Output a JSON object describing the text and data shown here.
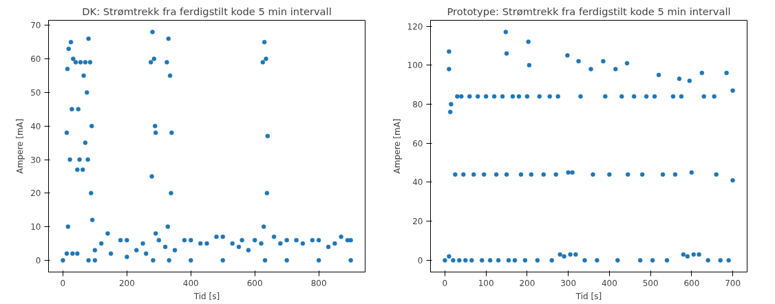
{
  "chart_data": [
    {
      "type": "scatter",
      "title": "DK: Strømtrekk fra ferdigstilt kode 5 min intervall",
      "xlabel": "Tid [s]",
      "ylabel": "Ampere [mA]",
      "xlim": [
        -45,
        945
      ],
      "ylim": [
        -3.5,
        71.5
      ],
      "xticks": [
        0,
        200,
        400,
        600,
        800
      ],
      "yticks": [
        0,
        10,
        20,
        30,
        40,
        50,
        60,
        70
      ],
      "grid": false,
      "marker": "circle",
      "series": [
        {
          "color": "#1f77b4",
          "x": [
            0,
            12,
            12,
            14,
            16,
            18,
            22,
            25,
            28,
            30,
            32,
            40,
            45,
            45,
            48,
            52,
            55,
            62,
            65,
            70,
            70,
            75,
            78,
            80,
            80,
            85,
            88,
            90,
            92,
            100,
            100,
            120,
            140,
            150,
            180,
            200,
            200,
            230,
            250,
            260,
            275,
            278,
            280,
            282,
            285,
            288,
            290,
            290,
            300,
            320,
            325,
            328,
            330,
            332,
            335,
            338,
            340,
            350,
            380,
            400,
            400,
            430,
            450,
            480,
            500,
            500,
            530,
            550,
            560,
            580,
            600,
            620,
            625,
            628,
            630,
            632,
            635,
            638,
            640,
            660,
            680,
            700,
            700,
            730,
            750,
            780,
            800,
            800,
            830,
            850,
            870,
            890,
            900,
            900
          ],
          "values": [
            0,
            2,
            38,
            57,
            10,
            63,
            30,
            65,
            45,
            2,
            60,
            59,
            2,
            27,
            45,
            30,
            59,
            27,
            55,
            35,
            59,
            50,
            30,
            66,
            0,
            59,
            20,
            40,
            12,
            0,
            3,
            5,
            8,
            2,
            6,
            1,
            6,
            3,
            5,
            2,
            59,
            25,
            68,
            0,
            60,
            40,
            38,
            8,
            6,
            4,
            59,
            10,
            66,
            0,
            55,
            20,
            38,
            3,
            6,
            6,
            0,
            5,
            5,
            7,
            7,
            0,
            5,
            4,
            6,
            3,
            6,
            5,
            59,
            10,
            65,
            0,
            60,
            20,
            37,
            7,
            5,
            6,
            0,
            6,
            5,
            6,
            6,
            0,
            4,
            5,
            7,
            6,
            6,
            0
          ]
        }
      ]
    },
    {
      "type": "scatter",
      "title": "Prototype: Strømtrekk fra ferdigstilt kode 5 min intervall",
      "xlabel": "Tid [s]",
      "ylabel": "Ampere [mA]",
      "xlim": [
        -35,
        735
      ],
      "ylim": [
        -6,
        123
      ],
      "xticks": [
        0,
        100,
        200,
        300,
        400,
        500,
        600,
        700
      ],
      "yticks": [
        0,
        20,
        40,
        60,
        80,
        100,
        120
      ],
      "grid": false,
      "marker": "circle",
      "series": [
        {
          "color": "#1f77b4",
          "x": [
            0,
            10,
            10,
            10,
            13,
            15,
            20,
            25,
            30,
            35,
            40,
            45,
            50,
            60,
            65,
            70,
            80,
            90,
            95,
            100,
            110,
            120,
            125,
            130,
            140,
            148,
            150,
            150,
            155,
            165,
            170,
            180,
            185,
            195,
            200,
            203,
            205,
            210,
            225,
            230,
            240,
            255,
            260,
            270,
            275,
            280,
            290,
            298,
            300,
            305,
            310,
            318,
            325,
            330,
            340,
            355,
            360,
            370,
            385,
            390,
            400,
            415,
            420,
            430,
            443,
            445,
            460,
            475,
            480,
            490,
            505,
            510,
            520,
            530,
            540,
            555,
            560,
            570,
            575,
            580,
            590,
            595,
            600,
            605,
            618,
            625,
            630,
            640,
            655,
            660,
            670,
            685,
            690,
            700,
            700
          ],
          "values": [
            0,
            107,
            98,
            2,
            76,
            80,
            0,
            44,
            84,
            0,
            84,
            44,
            0,
            84,
            0,
            44,
            84,
            0,
            44,
            84,
            0,
            84,
            44,
            0,
            84,
            117,
            106,
            44,
            0,
            84,
            0,
            84,
            44,
            0,
            84,
            112,
            100,
            44,
            0,
            84,
            44,
            84,
            0,
            44,
            84,
            3,
            2,
            105,
            45,
            3,
            45,
            3,
            102,
            84,
            0,
            98,
            44,
            0,
            102,
            84,
            44,
            98,
            0,
            84,
            101,
            44,
            84,
            0,
            44,
            84,
            0,
            84,
            95,
            44,
            0,
            84,
            44,
            93,
            84,
            3,
            2,
            92,
            45,
            3,
            3,
            96,
            84,
            0,
            84,
            44,
            0,
            96,
            0,
            87,
            41
          ]
        }
      ]
    }
  ]
}
